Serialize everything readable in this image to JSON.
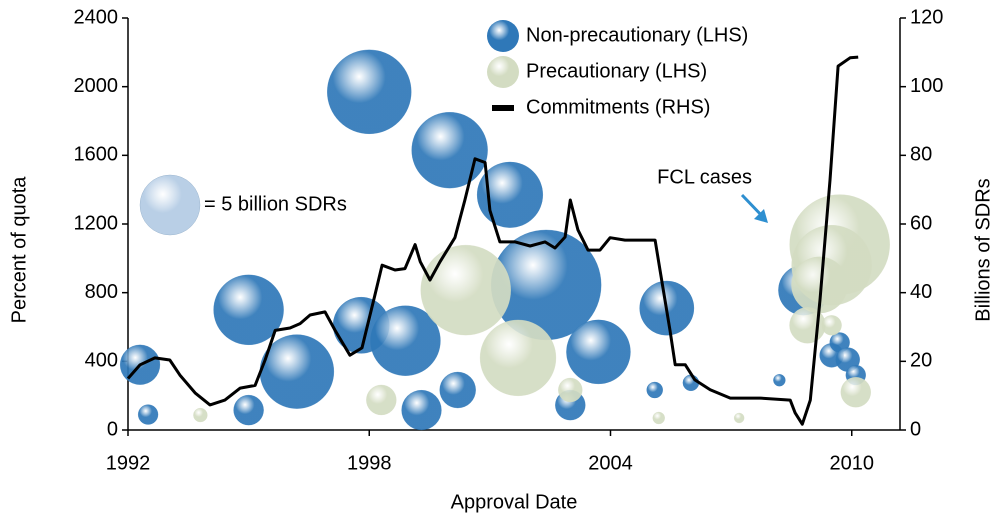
{
  "chart_data": {
    "type": "bubble",
    "x_label": "Approval Date",
    "y_label": "Percent of quota",
    "y2_label": "Billions of SDRs",
    "xlim": [
      1992,
      2011.2
    ],
    "xticks": [
      1992,
      1998,
      2004,
      2010
    ],
    "ylim": [
      0,
      2400
    ],
    "yticks": [
      0,
      400,
      800,
      1200,
      1600,
      2000,
      2400
    ],
    "y2lim": [
      0,
      120
    ],
    "y2ticks": [
      0,
      20,
      40,
      60,
      80,
      100,
      120
    ],
    "legend": "upper right",
    "size_legend": {
      "value": 5,
      "label": "= 5 billion SDRs"
    },
    "annotation": "FCL cases",
    "series": [
      {
        "name": "Non-precautionary (LHS)",
        "type": "bubble",
        "color": "#2f78b8",
        "x": [
          1992.3,
          1995.0,
          1996.2,
          1998.0,
          1997.8,
          1998.9,
          2000.0,
          2001.5,
          2002.4,
          2003.7,
          2005.4,
          2000.2,
          2003.0,
          2008.8,
          2009.5,
          2009.7,
          2009.9,
          2010.1,
          1999.3,
          1992.5,
          1995.0,
          2006.0,
          2005.1,
          2008.2
        ],
        "values": [
          380,
          700,
          340,
          1970,
          610,
          520,
          1630,
          1370,
          845,
          455,
          710,
          233,
          145,
          815,
          435,
          510,
          410,
          320,
          116,
          90,
          116,
          275,
          233,
          290
        ],
        "sizes": [
          2.2,
          6.8,
          7.6,
          9.8,
          4.4,
          6.8,
          8.0,
          6.0,
          16.8,
          5.7,
          4.1,
          1.8,
          1.25,
          3.5,
          0.8,
          0.55,
          0.8,
          0.55,
          2.2,
          0.55,
          1.25,
          0.36,
          0.36,
          0.2
        ]
      },
      {
        "name": "Precautionary (LHS)",
        "type": "bubble",
        "color": "#d3dcc2",
        "x": [
          2000.4,
          2001.7,
          2009.7,
          2009.5,
          2009.2,
          2008.9,
          1998.3,
          2003.0,
          2010.1,
          1993.8,
          2005.2,
          2007.2,
          2009.5
        ],
        "values": [
          815,
          420,
          1080,
          960,
          845,
          610,
          175,
          233,
          220,
          87,
          70,
          70,
          610
        ],
        "sizes": [
          11.25,
          8.0,
          13.9,
          8.9,
          4.4,
          1.8,
          1.25,
          0.8,
          1.25,
          0.27,
          0.2,
          0.14,
          0.55
        ]
      },
      {
        "name": "Commitments (RHS)",
        "type": "line",
        "axis": "y2",
        "color": "#000000",
        "x": [
          1992.0,
          1992.3,
          1992.67,
          1993.04,
          1993.29,
          1993.67,
          1994.04,
          1994.41,
          1994.79,
          1995.16,
          1995.41,
          1995.66,
          1996.03,
          1996.28,
          1996.53,
          1996.9,
          1997.15,
          1997.52,
          1997.82,
          1998.14,
          1998.32,
          1998.64,
          1998.89,
          1999.14,
          1999.27,
          1999.51,
          1999.76,
          2000.13,
          2000.38,
          2000.63,
          2000.88,
          2001.0,
          2001.25,
          2001.63,
          2002.0,
          2002.37,
          2002.62,
          2002.87,
          2003.0,
          2003.19,
          2003.44,
          2003.74,
          2003.99,
          2004.36,
          2004.86,
          2005.11,
          2005.23,
          2005.48,
          2005.61,
          2005.86,
          2006.1,
          2006.48,
          2006.98,
          2007.72,
          2008.47,
          2008.59,
          2008.77,
          2008.97,
          2009.21,
          2009.46,
          2009.66,
          2009.96,
          2010.16
        ],
        "values": [
          15,
          19,
          21,
          20.4,
          16,
          10.8,
          7.3,
          8.7,
          12.2,
          13,
          20.4,
          29,
          29.7,
          31,
          33.5,
          34.4,
          29,
          21.8,
          23.9,
          39.3,
          48,
          46.6,
          47,
          54,
          49,
          43.7,
          49,
          56,
          67,
          79,
          77.9,
          64,
          54.8,
          54.8,
          53.6,
          54.8,
          53,
          56.2,
          67,
          58.3,
          52.4,
          52.4,
          56,
          55.3,
          55.3,
          55.3,
          46.6,
          29,
          19,
          19,
          14.6,
          11.7,
          9.3,
          9.3,
          8.7,
          5,
          1.7,
          8.7,
          37.9,
          72.8,
          106,
          108.4,
          108.6
        ]
      }
    ]
  }
}
